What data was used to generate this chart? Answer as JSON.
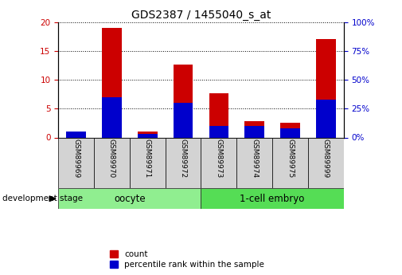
{
  "title": "GDS2387 / 1455040_s_at",
  "samples": [
    "GSM89969",
    "GSM89970",
    "GSM89971",
    "GSM89972",
    "GSM89973",
    "GSM89974",
    "GSM89975",
    "GSM89999"
  ],
  "count": [
    1.1,
    19.0,
    1.1,
    12.6,
    7.6,
    2.8,
    2.5,
    17.1
  ],
  "percentile": [
    5.0,
    35.0,
    3.0,
    30.0,
    10.0,
    10.0,
    8.0,
    33.0
  ],
  "groups": [
    {
      "label": "oocyte",
      "start": 0,
      "end": 4,
      "color": "#90ee90"
    },
    {
      "label": "1-cell embryo",
      "start": 4,
      "end": 8,
      "color": "#55dd55"
    }
  ],
  "bar_color_count": "#cc0000",
  "bar_color_pct": "#0000cc",
  "ylim_left": [
    0,
    20
  ],
  "ylim_right": [
    0,
    100
  ],
  "yticks_left": [
    0,
    5,
    10,
    15,
    20
  ],
  "yticks_right": [
    0,
    25,
    50,
    75,
    100
  ],
  "bar_width": 0.55,
  "background_color": "#ffffff",
  "tick_label_color_left": "#cc0000",
  "tick_label_color_right": "#0000cc",
  "title_fontsize": 10,
  "axis_fontsize": 7.5,
  "legend_count_label": "count",
  "legend_pct_label": "percentile rank within the sample",
  "dev_stage_label": "development stage",
  "xlabel_area_color": "#d3d3d3",
  "group_label_fontsize": 8.5,
  "sample_fontsize": 6.5
}
